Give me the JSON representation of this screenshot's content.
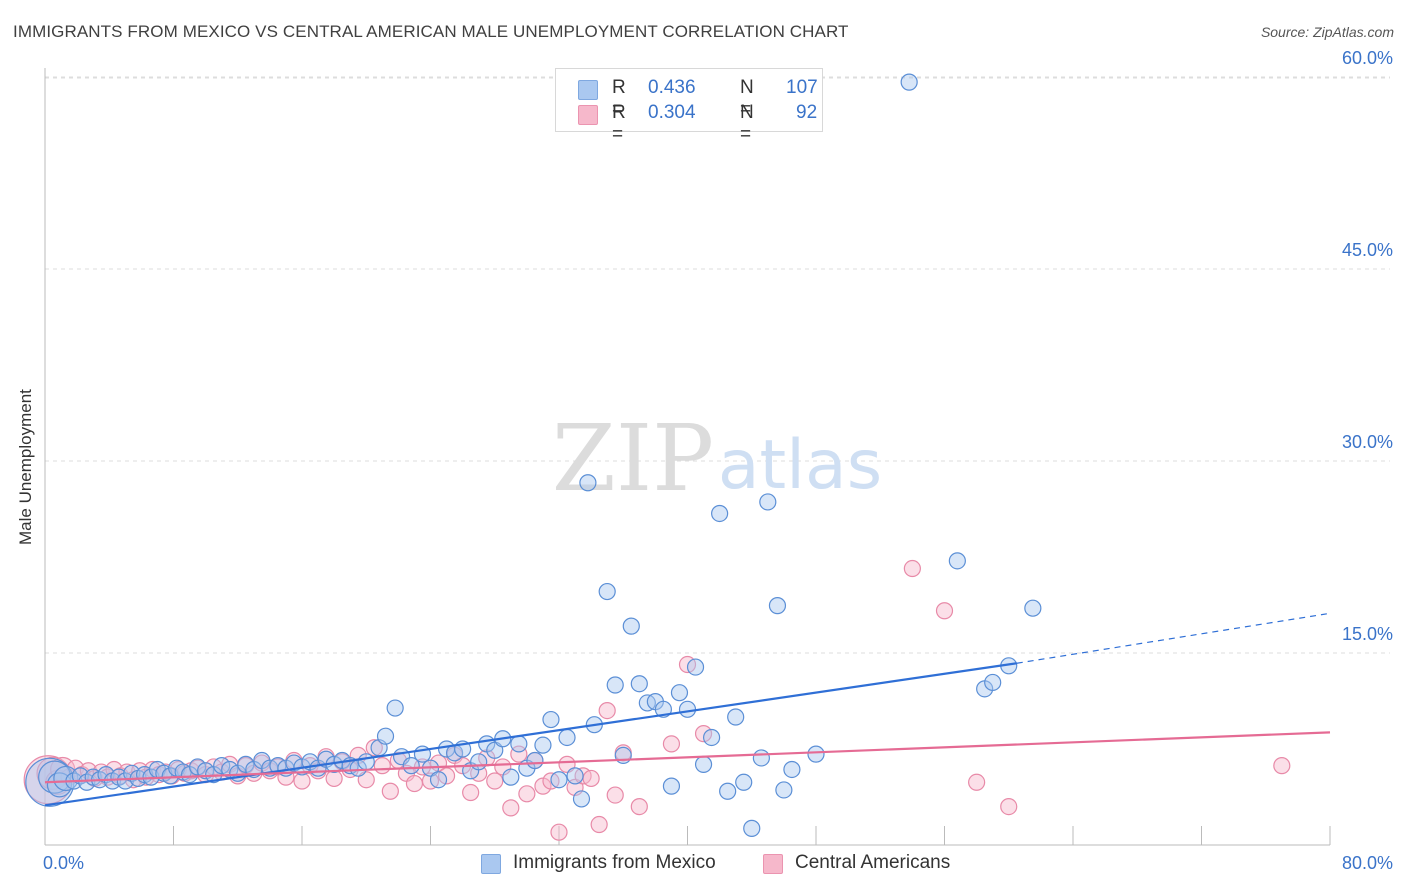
{
  "header": {
    "title": "IMMIGRANTS FROM MEXICO VS CENTRAL AMERICAN MALE UNEMPLOYMENT CORRELATION CHART",
    "source": "Source: ZipAtlas.com"
  },
  "watermark": {
    "zip": "ZIP",
    "atlas": "atlas"
  },
  "legend": {
    "rows": [
      {
        "r_label": "R = ",
        "r_value": "0.436",
        "n_label": "N = ",
        "n_value": "107",
        "color": "#aac8f0"
      },
      {
        "r_label": "R = ",
        "r_value": "0.304",
        "n_label": "N = ",
        "n_value": "92",
        "color": "#f6b8cb"
      }
    ]
  },
  "bottom_legend": [
    {
      "label": "Immigrants from Mexico",
      "color": "#aac8f0"
    },
    {
      "label": "Central Americans",
      "color": "#f6b8cb"
    }
  ],
  "colors": {
    "blue_fill": "#a9c7f0",
    "blue_stroke": "#5b8fd6",
    "blue_line": "#2f6fd6",
    "pink_fill": "#f6b8cb",
    "pink_stroke": "#e88aa8",
    "pink_line": "#e56b94",
    "tick_label": "#3a73c9",
    "grid": "#dddddd"
  },
  "chart_data": {
    "type": "scatter",
    "title": "IMMIGRANTS FROM MEXICO VS CENTRAL AMERICAN MALE UNEMPLOYMENT CORRELATION CHART",
    "xlabel": "",
    "ylabel": "Male Unemployment",
    "xlim": [
      0,
      80
    ],
    "ylim": [
      0,
      62
    ],
    "x_tick_labels": [
      "0.0%",
      "80.0%"
    ],
    "y_ticks": [
      15,
      30,
      45,
      60
    ],
    "y_tick_labels": [
      "15.0%",
      "30.0%",
      "45.0%",
      "60.0%"
    ],
    "grid": true,
    "legend_position": "top-center",
    "series": [
      {
        "name": "Immigrants from Mexico",
        "trend": {
          "x": [
            0,
            60.5
          ],
          "y": [
            3.1,
            14.2
          ],
          "dashed_to": [
            80,
            18.1
          ]
        },
        "points": [
          [
            0.3,
            4.9,
            3
          ],
          [
            0.6,
            5.3,
            2
          ],
          [
            0.9,
            4.7,
            1.5
          ],
          [
            1.3,
            5.2,
            1.5
          ],
          [
            1.8,
            5.0,
            1
          ],
          [
            2.2,
            5.4,
            1
          ],
          [
            2.6,
            4.9,
            1
          ],
          [
            3.0,
            5.3,
            1
          ],
          [
            3.4,
            5.1,
            1
          ],
          [
            3.8,
            5.5,
            1
          ],
          [
            4.2,
            5.0,
            1
          ],
          [
            4.6,
            5.3,
            1
          ],
          [
            5.0,
            5.0,
            1
          ],
          [
            5.4,
            5.6,
            1
          ],
          [
            5.8,
            5.2,
            1
          ],
          [
            6.2,
            5.5,
            1
          ],
          [
            6.6,
            5.3,
            1
          ],
          [
            7.0,
            5.9,
            1
          ],
          [
            7.4,
            5.6,
            1
          ],
          [
            7.8,
            5.4,
            1
          ],
          [
            8.2,
            6.0,
            1
          ],
          [
            8.6,
            5.7,
            1
          ],
          [
            9.0,
            5.5,
            1
          ],
          [
            9.5,
            6.1,
            1
          ],
          [
            10.0,
            5.8,
            1
          ],
          [
            10.5,
            5.5,
            1
          ],
          [
            11.0,
            6.2,
            1
          ],
          [
            11.5,
            5.9,
            1
          ],
          [
            12.0,
            5.6,
            1
          ],
          [
            12.5,
            6.3,
            1
          ],
          [
            13.0,
            5.9,
            1
          ],
          [
            13.5,
            6.6,
            1
          ],
          [
            14.0,
            6.0,
            1
          ],
          [
            14.5,
            6.2,
            1
          ],
          [
            15.0,
            6.0,
            1
          ],
          [
            15.5,
            6.4,
            1
          ],
          [
            16.0,
            6.1,
            1
          ],
          [
            16.5,
            6.5,
            1
          ],
          [
            17.0,
            6.0,
            1
          ],
          [
            17.5,
            6.7,
            1
          ],
          [
            18.0,
            6.3,
            1
          ],
          [
            18.5,
            6.6,
            1
          ],
          [
            19.0,
            6.2,
            1
          ],
          [
            19.5,
            6.0,
            1
          ],
          [
            20.0,
            6.5,
            1
          ],
          [
            20.8,
            7.6,
            1
          ],
          [
            21.2,
            8.5,
            1
          ],
          [
            21.8,
            10.7,
            1
          ],
          [
            22.2,
            6.9,
            1
          ],
          [
            22.8,
            6.2,
            1
          ],
          [
            23.5,
            7.1,
            1
          ],
          [
            24.0,
            6.0,
            1
          ],
          [
            24.5,
            5.1,
            1
          ],
          [
            25.0,
            7.5,
            1
          ],
          [
            25.5,
            7.2,
            1
          ],
          [
            26.0,
            7.5,
            1
          ],
          [
            26.5,
            5.8,
            1
          ],
          [
            27.0,
            6.5,
            1
          ],
          [
            27.5,
            7.9,
            1
          ],
          [
            28.0,
            7.4,
            1
          ],
          [
            28.5,
            8.3,
            1
          ],
          [
            29.0,
            5.3,
            1
          ],
          [
            29.5,
            7.9,
            1
          ],
          [
            30.0,
            6.0,
            1
          ],
          [
            30.5,
            6.6,
            1
          ],
          [
            31.0,
            7.8,
            1
          ],
          [
            31.5,
            9.8,
            1
          ],
          [
            32.0,
            5.1,
            1
          ],
          [
            32.5,
            8.4,
            1
          ],
          [
            33.0,
            5.4,
            1
          ],
          [
            33.4,
            3.6,
            1
          ],
          [
            33.8,
            28.3,
            1
          ],
          [
            34.2,
            9.4,
            1
          ],
          [
            35.0,
            19.8,
            1
          ],
          [
            35.5,
            12.5,
            1
          ],
          [
            36.0,
            7.0,
            1
          ],
          [
            36.5,
            17.1,
            1
          ],
          [
            37.0,
            12.6,
            1
          ],
          [
            37.5,
            11.1,
            1
          ],
          [
            38.0,
            11.2,
            1
          ],
          [
            38.5,
            10.6,
            1
          ],
          [
            39.0,
            4.6,
            1
          ],
          [
            39.5,
            11.9,
            1
          ],
          [
            40.0,
            10.6,
            1
          ],
          [
            40.5,
            13.9,
            1
          ],
          [
            41.0,
            6.3,
            1
          ],
          [
            41.5,
            8.4,
            1
          ],
          [
            42.0,
            25.9,
            1
          ],
          [
            42.5,
            4.2,
            1
          ],
          [
            43.0,
            10.0,
            1
          ],
          [
            43.5,
            4.9,
            1
          ],
          [
            44.0,
            1.3,
            1
          ],
          [
            44.6,
            6.8,
            1
          ],
          [
            45.0,
            26.8,
            1
          ],
          [
            45.6,
            18.7,
            1
          ],
          [
            46.0,
            4.3,
            1
          ],
          [
            46.5,
            5.9,
            1
          ],
          [
            48.0,
            7.1,
            1
          ],
          [
            53.8,
            59.6,
            1
          ],
          [
            56.8,
            22.2,
            1
          ],
          [
            58.5,
            12.2,
            1
          ],
          [
            59.0,
            12.7,
            1
          ],
          [
            60.0,
            14.0,
            1
          ],
          [
            61.5,
            18.5,
            1
          ]
        ]
      },
      {
        "name": "Central Americans",
        "trend": {
          "x": [
            0,
            80
          ],
          "y": [
            4.9,
            8.8
          ]
        },
        "points": [
          [
            0.2,
            5.1,
            3
          ],
          [
            0.5,
            5.6,
            2
          ],
          [
            0.8,
            4.9,
            1.5
          ],
          [
            1.1,
            5.9,
            1.5
          ],
          [
            1.5,
            5.3,
            1
          ],
          [
            1.9,
            6.0,
            1
          ],
          [
            2.3,
            5.5,
            1
          ],
          [
            2.7,
            5.8,
            1
          ],
          [
            3.1,
            5.2,
            1
          ],
          [
            3.5,
            5.7,
            1
          ],
          [
            3.9,
            5.3,
            1
          ],
          [
            4.3,
            5.9,
            1
          ],
          [
            4.7,
            5.4,
            1
          ],
          [
            5.1,
            5.7,
            1
          ],
          [
            5.5,
            5.1,
            1
          ],
          [
            5.9,
            5.8,
            1
          ],
          [
            6.3,
            5.3,
            1
          ],
          [
            6.7,
            5.9,
            1
          ],
          [
            7.1,
            5.5,
            1
          ],
          [
            7.5,
            5.7,
            1
          ],
          [
            7.9,
            5.4,
            1
          ],
          [
            8.3,
            5.9,
            1
          ],
          [
            8.7,
            5.6,
            1
          ],
          [
            9.1,
            5.8,
            1
          ],
          [
            9.5,
            6.0,
            1
          ],
          [
            10.0,
            5.5,
            1
          ],
          [
            10.5,
            6.1,
            1
          ],
          [
            11.0,
            5.7,
            1
          ],
          [
            11.5,
            6.3,
            1
          ],
          [
            12.0,
            5.4,
            1
          ],
          [
            12.5,
            6.2,
            1
          ],
          [
            13.0,
            5.6,
            1
          ],
          [
            13.5,
            6.4,
            1
          ],
          [
            14.0,
            5.8,
            1
          ],
          [
            14.5,
            6.1,
            1
          ],
          [
            15.0,
            5.3,
            1
          ],
          [
            15.5,
            6.6,
            1
          ],
          [
            16.0,
            5.0,
            1
          ],
          [
            16.5,
            6.2,
            1
          ],
          [
            17.0,
            5.8,
            1
          ],
          [
            17.5,
            6.9,
            1
          ],
          [
            18.0,
            5.2,
            1
          ],
          [
            18.5,
            6.5,
            1
          ],
          [
            19.0,
            5.9,
            1
          ],
          [
            19.5,
            7.0,
            1
          ],
          [
            20.0,
            5.1,
            1
          ],
          [
            20.5,
            7.6,
            1
          ],
          [
            21.0,
            6.2,
            1
          ],
          [
            21.5,
            4.2,
            1
          ],
          [
            22.0,
            6.6,
            1
          ],
          [
            22.5,
            5.6,
            1
          ],
          [
            23.0,
            4.8,
            1
          ],
          [
            23.5,
            6.1,
            1
          ],
          [
            24.0,
            5.0,
            1
          ],
          [
            24.5,
            6.4,
            1
          ],
          [
            25.0,
            5.4,
            1
          ],
          [
            25.5,
            7.0,
            1
          ],
          [
            26.0,
            6.2,
            1
          ],
          [
            26.5,
            4.1,
            1
          ],
          [
            27.0,
            5.6,
            1
          ],
          [
            27.5,
            6.8,
            1
          ],
          [
            28.0,
            5.0,
            1
          ],
          [
            28.5,
            6.1,
            1
          ],
          [
            29.0,
            2.9,
            1
          ],
          [
            29.5,
            7.1,
            1
          ],
          [
            30.0,
            4.0,
            1
          ],
          [
            30.5,
            6.6,
            1
          ],
          [
            31.0,
            4.6,
            1
          ],
          [
            31.5,
            5.0,
            1
          ],
          [
            32.0,
            1.0,
            1
          ],
          [
            32.5,
            6.3,
            1
          ],
          [
            33.0,
            4.5,
            1
          ],
          [
            33.5,
            5.4,
            1
          ],
          [
            34.0,
            5.2,
            1
          ],
          [
            34.5,
            1.6,
            1
          ],
          [
            35.0,
            10.5,
            1
          ],
          [
            35.5,
            3.9,
            1
          ],
          [
            36.0,
            7.2,
            1
          ],
          [
            37.0,
            3.0,
            1
          ],
          [
            39.0,
            7.9,
            1
          ],
          [
            40.0,
            14.1,
            1
          ],
          [
            41.0,
            8.7,
            1
          ],
          [
            54.0,
            21.6,
            1
          ],
          [
            56.0,
            18.3,
            1
          ],
          [
            58.0,
            4.9,
            1
          ],
          [
            60.0,
            3.0,
            1
          ],
          [
            77.0,
            6.2,
            1
          ]
        ]
      }
    ]
  }
}
